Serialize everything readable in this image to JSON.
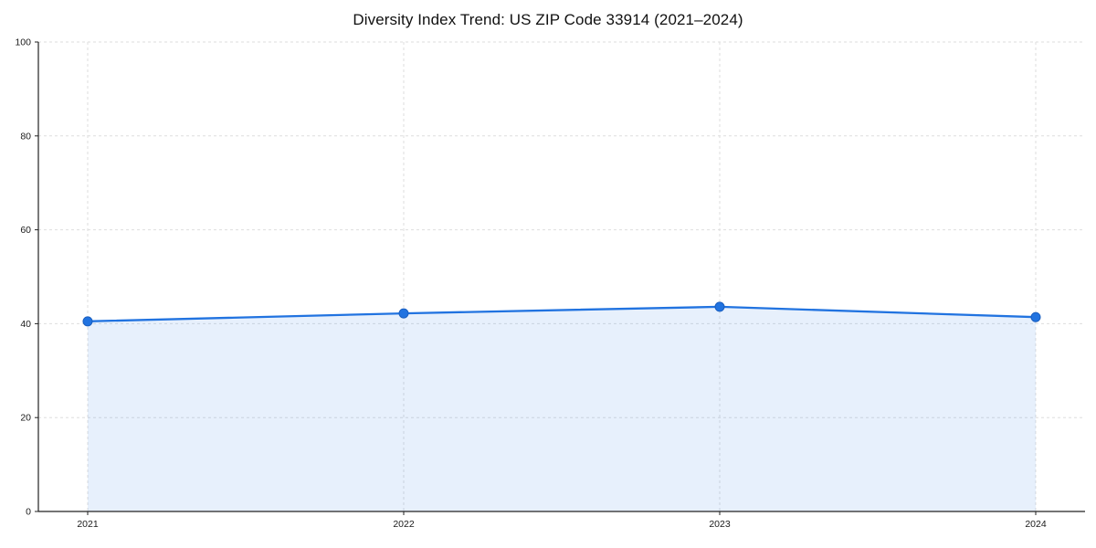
{
  "chart_data": {
    "type": "line",
    "title": "Diversity Index Trend: US ZIP Code 33914 (2021–2024)",
    "x": [
      2021,
      2022,
      2023,
      2024
    ],
    "x_labels": [
      "2021",
      "2022",
      "2023",
      "2024"
    ],
    "series": [
      {
        "name": "Diversity Index",
        "values": [
          40.5,
          42.2,
          43.6,
          41.4
        ]
      }
    ],
    "xlabel": "",
    "ylabel": "",
    "ylim": [
      0,
      100
    ],
    "yticks": [
      0,
      20,
      40,
      60,
      80,
      100
    ],
    "ytick_labels": [
      "0",
      "20",
      "40",
      "60",
      "80",
      "100"
    ],
    "grid": true,
    "grid_style": "dashed",
    "legend_position": "none",
    "colors": {
      "line": "#2173e0",
      "marker": "#2173e0",
      "marker_edge": "#1a5fc0",
      "area_fill": "#2173e0",
      "area_opacity": 0.11,
      "grid": "#dedede",
      "axis": "#222222",
      "tick_text": "#1a1a1a",
      "background": "#ffffff"
    }
  }
}
